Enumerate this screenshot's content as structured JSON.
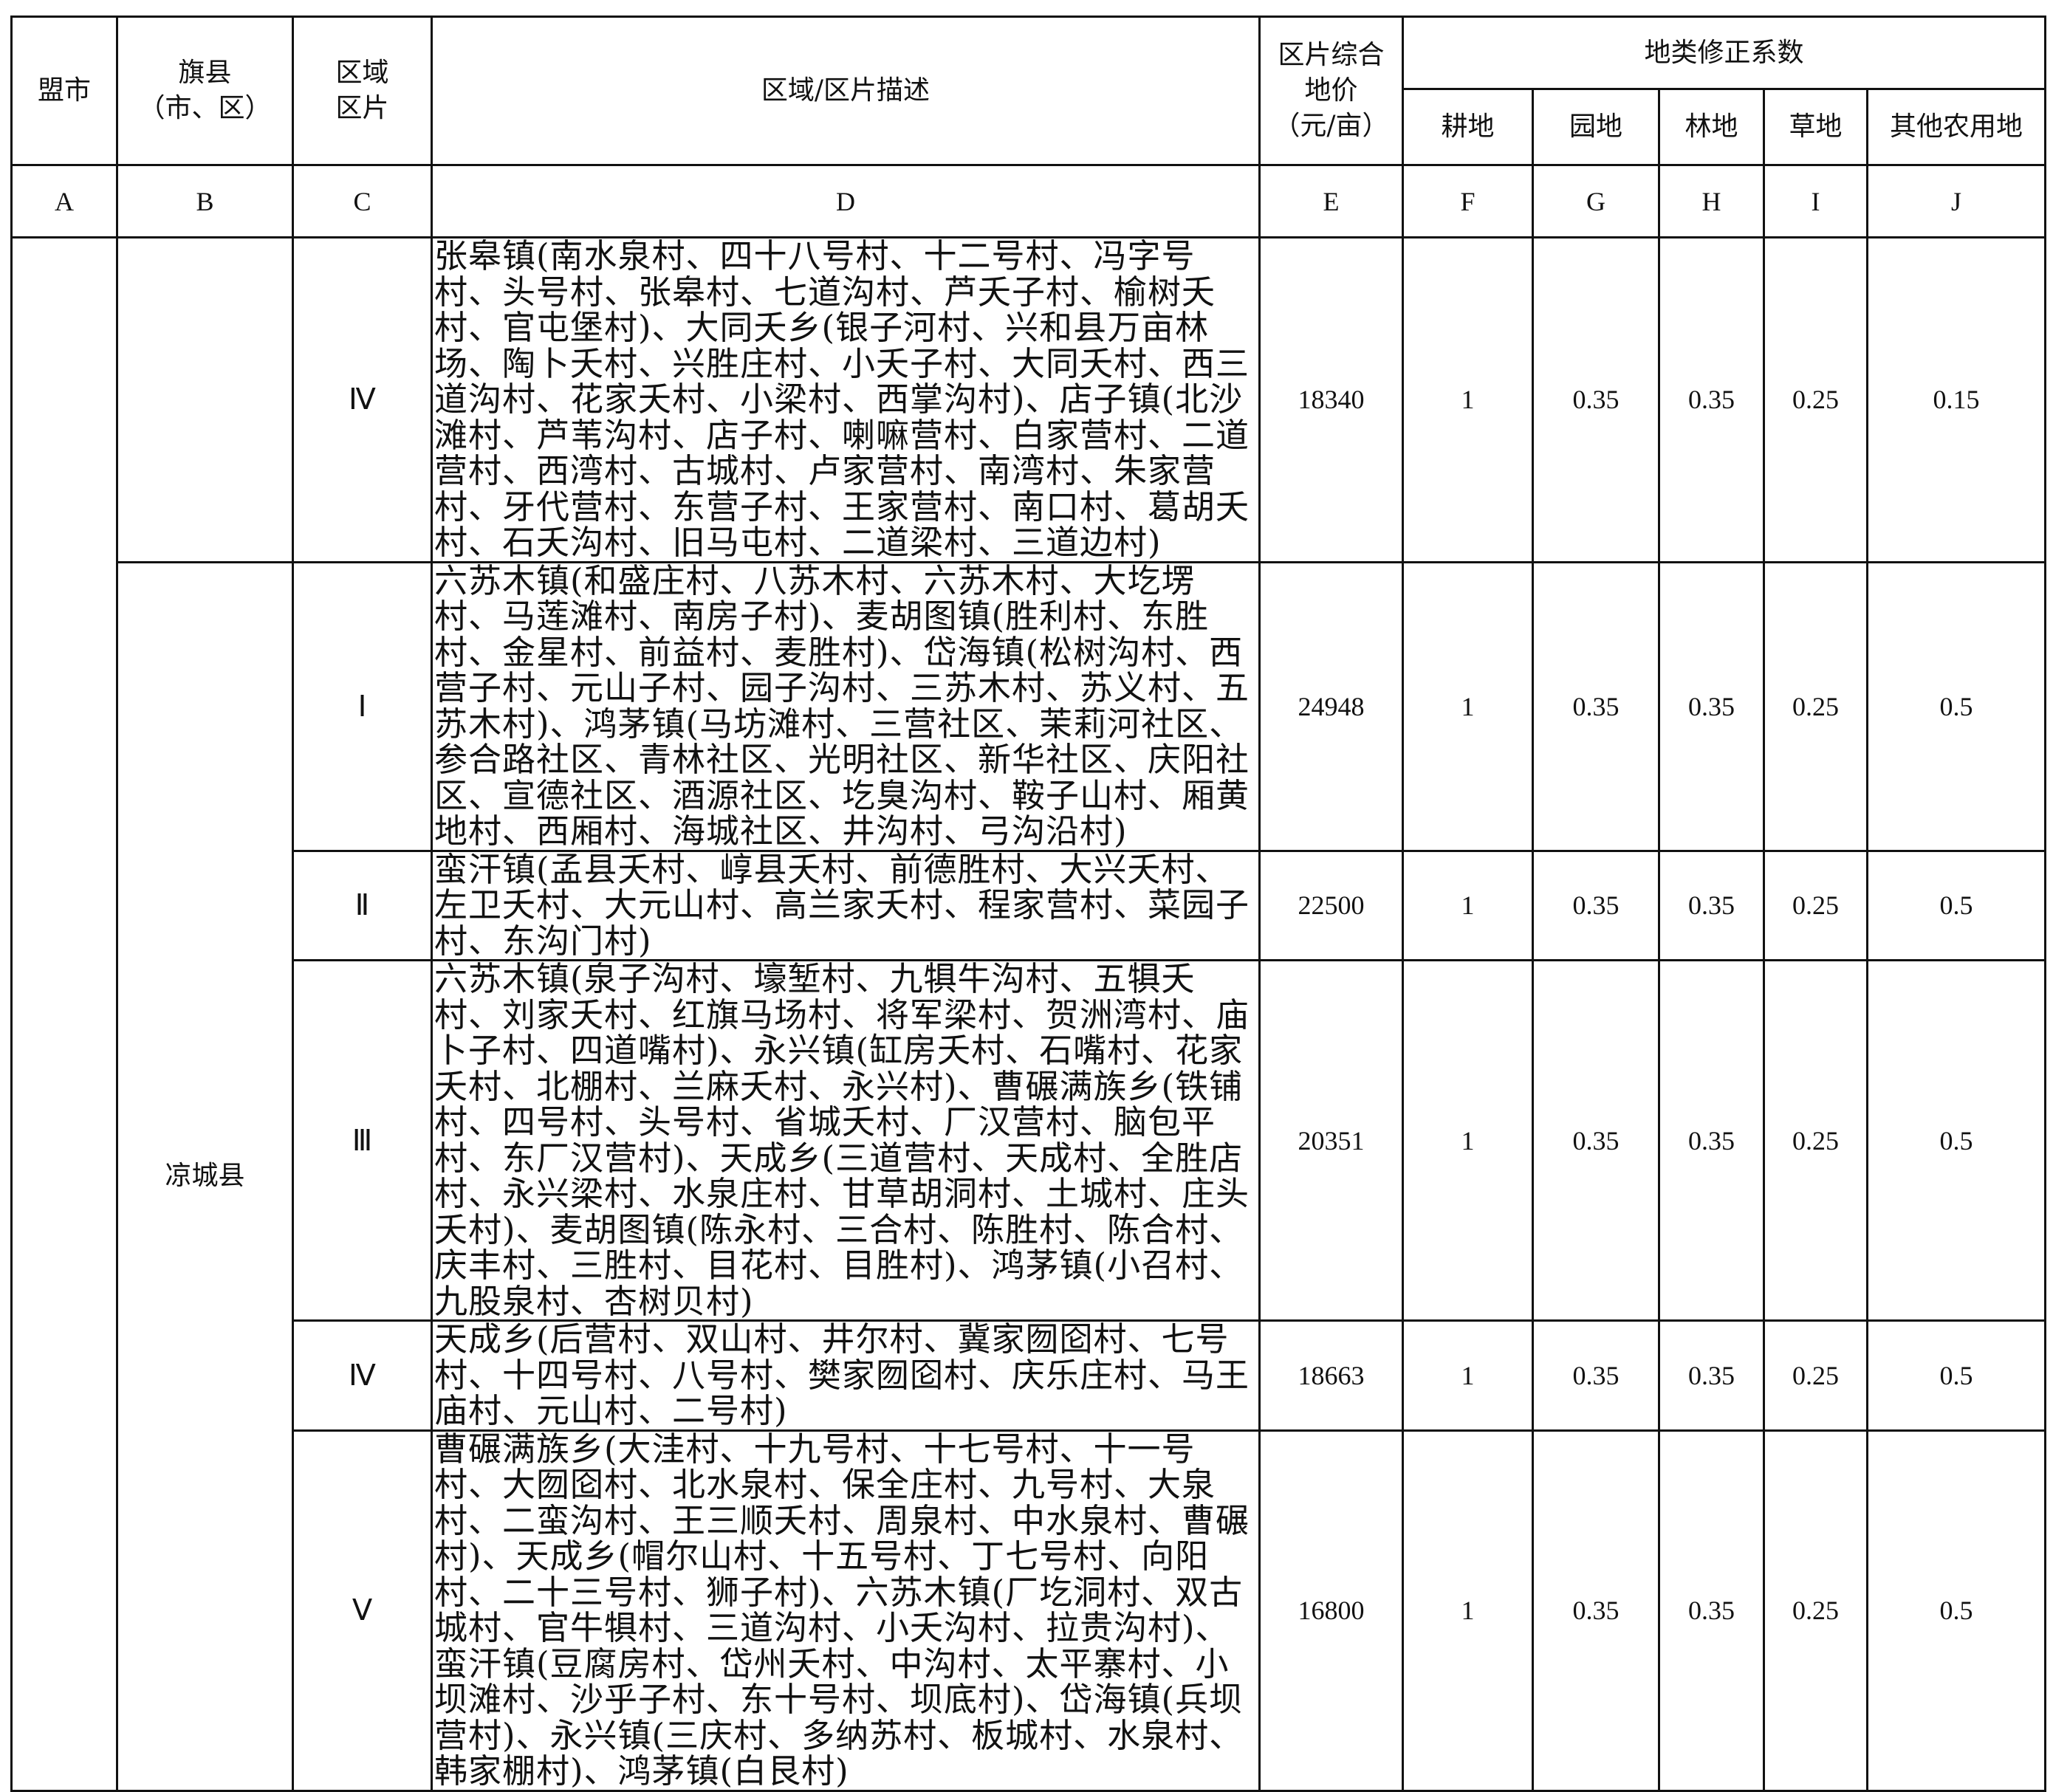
{
  "header": {
    "col_a": "盟市",
    "col_b": "旗县\n（市、区）",
    "col_b_line1": "旗县",
    "col_b_line2": "（市、区）",
    "col_c_line1": "区域",
    "col_c_line2": "区片",
    "col_d": "区域/区片描述",
    "col_e_line1": "区片综合",
    "col_e_line2": "地价",
    "col_e_line3": "（元/亩）",
    "group": "地类修正系数",
    "sub": [
      "耕地",
      "园地",
      "林地",
      "草地",
      "其他农用地"
    ],
    "letters": [
      "A",
      "B",
      "C",
      "D",
      "E",
      "F",
      "G",
      "H",
      "I",
      "J"
    ]
  },
  "county": "凉城县",
  "rows": [
    {
      "zone": "Ⅳ",
      "desc": "张皋镇(南水泉村、四十八号村、十二号村、冯字号村、头号村、张皋村、七道沟村、芦夭子村、榆树夭村、官屯堡村)、大同夭乡(银子河村、兴和县万亩林场、陶卜夭村、兴胜庄村、小夭子村、大同夭村、西三道沟村、花家夭村、小梁村、西掌沟村)、店子镇(北沙滩村、芦苇沟村、店子村、喇嘛营村、白家营村、二道营村、西湾村、古城村、卢家营村、南湾村、朱家营村、牙代营村、东营子村、王家营村、南口村、葛胡夭村、石夭沟村、旧马屯村、二道梁村、三道边村)",
      "price": "18340",
      "f": "1",
      "g": "0.35",
      "h": "0.35",
      "i": "0.25",
      "j": "0.15"
    },
    {
      "zone": "Ⅰ",
      "desc": "六苏木镇(和盛庄村、八苏木村、六苏木村、大圪塄村、马莲滩村、南房子村)、麦胡图镇(胜利村、东胜村、金星村、前益村、麦胜村)、岱海镇(松树沟村、西营子村、元山子村、园子沟村、三苏木村、苏义村、五苏木村)、鸿茅镇(马坊滩村、三营社区、茉莉河社区、参合路社区、青林社区、光明社区、新华社区、庆阳社区、宣德社区、酒源社区、圪臭沟村、鞍子山村、厢黄地村、西厢村、海城社区、井沟村、弓沟沿村)",
      "price": "24948",
      "f": "1",
      "g": "0.35",
      "h": "0.35",
      "i": "0.25",
      "j": "0.5"
    },
    {
      "zone": "Ⅱ",
      "desc": "蛮汗镇(孟县夭村、崞县夭村、前德胜村、大兴夭村、左卫夭村、大元山村、高兰家夭村、程家营村、菜园子村、东沟门村)",
      "price": "22500",
      "f": "1",
      "g": "0.35",
      "h": "0.35",
      "i": "0.25",
      "j": "0.5"
    },
    {
      "zone": "Ⅲ",
      "desc": "六苏木镇(泉子沟村、壕堑村、九犋牛沟村、五犋夭村、刘家夭村、红旗马场村、将军梁村、贺洲湾村、庙卜子村、四道嘴村)、永兴镇(缸房夭村、石嘴村、花家夭村、北棚村、兰麻夭村、永兴村)、曹碾满族乡(铁铺村、四号村、头号村、省城夭村、厂汉营村、脑包平村、东厂汉营村)、天成乡(三道营村、天成村、全胜店村、永兴梁村、水泉庄村、甘草胡洞村、土城村、庄头夭村)、麦胡图镇(陈永村、三合村、陈胜村、陈合村、庆丰村、三胜村、目花村、目胜村)、鸿茅镇(小召村、九股泉村、杏树贝村)",
      "price": "20351",
      "f": "1",
      "g": "0.35",
      "h": "0.35",
      "i": "0.25",
      "j": "0.5"
    },
    {
      "zone": "Ⅳ",
      "desc": "天成乡(后营村、双山村、井尔村、冀家囫囵村、七号村、十四号村、八号村、樊家囫囵村、庆乐庄村、马王庙村、元山村、二号村)",
      "price": "18663",
      "f": "1",
      "g": "0.35",
      "h": "0.35",
      "i": "0.25",
      "j": "0.5"
    },
    {
      "zone": "Ⅴ",
      "desc": "曹碾满族乡(大洼村、十九号村、十七号村、十一号村、大囫囵村、北水泉村、保全庄村、九号村、大泉村、二蛮沟村、王三顺夭村、周泉村、中水泉村、曹碾村)、天成乡(帽尔山村、十五号村、丁七号村、向阳村、二十三号村、狮子村)、六苏木镇(厂圪洞村、双古城村、官牛犋村、三道沟村、小夭沟村、拉贵沟村)、蛮汗镇(豆腐房村、岱州夭村、中沟村、太平寨村、小坝滩村、沙乎子村、东十号村、坝底村)、岱海镇(兵坝营村)、永兴镇(三庆村、多纳苏村、板城村、水泉村、韩家棚村)、鸿茅镇(白艮村)",
      "price": "16800",
      "f": "1",
      "g": "0.35",
      "h": "0.35",
      "i": "0.25",
      "j": "0.5"
    }
  ]
}
